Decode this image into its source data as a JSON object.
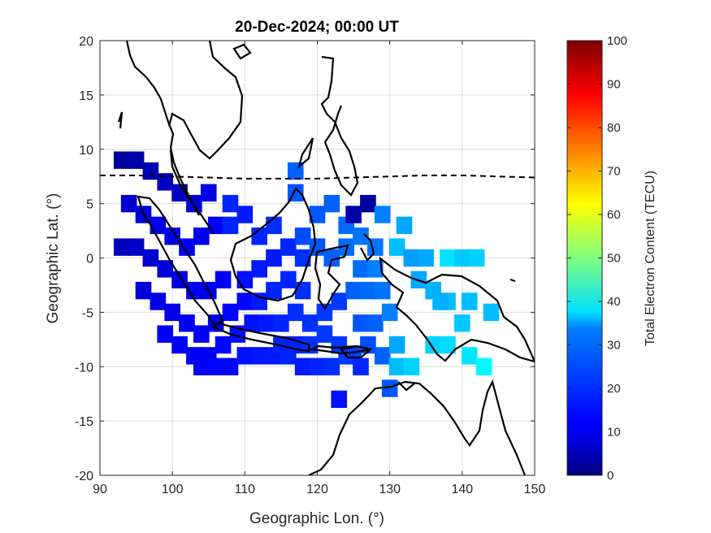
{
  "chart_data": {
    "type": "heatmap",
    "title": "20-Dec-2024; 00:00 UT",
    "xlabel": "Geographic Lon. (°)",
    "ylabel": "Geographic Lat. (°)",
    "colorbar_label": "Total Electron Content (TECU)",
    "colormap": "jet",
    "xlim": [
      90,
      150
    ],
    "ylim": [
      -20,
      20
    ],
    "clim": [
      0,
      100
    ],
    "xticks": [
      90,
      100,
      110,
      120,
      130,
      140,
      150
    ],
    "yticks": [
      -20,
      -15,
      -10,
      -5,
      0,
      5,
      10,
      15,
      20
    ],
    "cbticks": [
      0,
      10,
      20,
      30,
      40,
      50,
      60,
      70,
      80,
      90,
      100
    ],
    "grid": true,
    "magnetic_equator": [
      [
        90,
        7.6
      ],
      [
        95,
        7.6
      ],
      [
        100,
        7.5
      ],
      [
        105,
        7.4
      ],
      [
        110,
        7.3
      ],
      [
        115,
        7.3
      ],
      [
        120,
        7.3
      ],
      [
        125,
        7.4
      ],
      [
        130,
        7.5
      ],
      [
        135,
        7.6
      ],
      [
        140,
        7.6
      ],
      [
        145,
        7.5
      ],
      [
        150,
        7.4
      ]
    ],
    "cells": [
      [
        93,
        9,
        3
      ],
      [
        95,
        9,
        4
      ],
      [
        97,
        8,
        5
      ],
      [
        99,
        7,
        6
      ],
      [
        101,
        6,
        7
      ],
      [
        103,
        5,
        9
      ],
      [
        105,
        6,
        10
      ],
      [
        94,
        5,
        8
      ],
      [
        96,
        4,
        9
      ],
      [
        98,
        3,
        10
      ],
      [
        100,
        2,
        10
      ],
      [
        102,
        1,
        11
      ],
      [
        104,
        2,
        11
      ],
      [
        106,
        3,
        12
      ],
      [
        108,
        5,
        16
      ],
      [
        93,
        1,
        6
      ],
      [
        95,
        1,
        7
      ],
      [
        97,
        0,
        8
      ],
      [
        99,
        -1,
        9
      ],
      [
        101,
        -2,
        10
      ],
      [
        103,
        -3,
        11
      ],
      [
        105,
        -3,
        11
      ],
      [
        107,
        -2,
        12
      ],
      [
        96,
        -3,
        9
      ],
      [
        98,
        -4,
        10
      ],
      [
        100,
        -5,
        10
      ],
      [
        102,
        -6,
        11
      ],
      [
        104,
        -7,
        12
      ],
      [
        106,
        -6,
        12
      ],
      [
        108,
        -5,
        13
      ],
      [
        110,
        -4,
        13
      ],
      [
        99,
        -7,
        11
      ],
      [
        101,
        -8,
        12
      ],
      [
        103,
        -9,
        12
      ],
      [
        105,
        -9,
        12
      ],
      [
        107,
        -8,
        13
      ],
      [
        109,
        -7,
        14
      ],
      [
        111,
        -6,
        14
      ],
      [
        104,
        -10,
        12
      ],
      [
        106,
        -10,
        13
      ],
      [
        108,
        -10,
        13
      ],
      [
        110,
        -9,
        14
      ],
      [
        112,
        -9,
        15
      ],
      [
        114,
        -9,
        15
      ],
      [
        116,
        -9,
        16
      ],
      [
        110,
        -2,
        14
      ],
      [
        112,
        -1,
        15
      ],
      [
        114,
        0,
        15
      ],
      [
        116,
        1,
        16
      ],
      [
        118,
        0,
        17
      ],
      [
        112,
        -4,
        15
      ],
      [
        114,
        -3,
        16
      ],
      [
        116,
        -2,
        16
      ],
      [
        118,
        -3,
        17
      ],
      [
        113,
        -6,
        15
      ],
      [
        115,
        -6,
        16
      ],
      [
        117,
        -5,
        17
      ],
      [
        119,
        -6,
        17
      ],
      [
        121,
        -5,
        18
      ],
      [
        123,
        -4,
        18
      ],
      [
        115,
        -8,
        16
      ],
      [
        117,
        -8,
        16
      ],
      [
        119,
        -8,
        17
      ],
      [
        121,
        -7,
        18
      ],
      [
        123,
        -8,
        18
      ],
      [
        125,
        -9,
        19
      ],
      [
        118,
        -10,
        15
      ],
      [
        120,
        -10,
        16
      ],
      [
        122,
        -10,
        17
      ],
      [
        124,
        -9,
        18
      ],
      [
        126,
        -10,
        16
      ],
      [
        117,
        8,
        22
      ],
      [
        117,
        6,
        21
      ],
      [
        120,
        4,
        21
      ],
      [
        122,
        5,
        22
      ],
      [
        124,
        3,
        23
      ],
      [
        118,
        2,
        20
      ],
      [
        120,
        1,
        21
      ],
      [
        122,
        0,
        22
      ],
      [
        124,
        1,
        23
      ],
      [
        126,
        2,
        24
      ],
      [
        128,
        1,
        24
      ],
      [
        126,
        -1,
        23
      ],
      [
        128,
        -1,
        25
      ],
      [
        125,
        -3,
        22
      ],
      [
        127,
        -3,
        23
      ],
      [
        129,
        -3,
        24
      ],
      [
        126,
        -6,
        21
      ],
      [
        128,
        -6,
        22
      ],
      [
        130,
        -5,
        25
      ],
      [
        127,
        -8,
        20
      ],
      [
        129,
        -9,
        22
      ],
      [
        125,
        4,
        4
      ],
      [
        127,
        5,
        3
      ],
      [
        129,
        4,
        25
      ],
      [
        132,
        3,
        29
      ],
      [
        131,
        1,
        31
      ],
      [
        133,
        0,
        28
      ],
      [
        134,
        -2,
        29
      ],
      [
        136,
        -3,
        30
      ],
      [
        138,
        -4,
        31
      ],
      [
        135,
        0,
        29
      ],
      [
        138,
        0,
        35
      ],
      [
        140,
        0,
        32
      ],
      [
        142,
        0,
        33
      ],
      [
        137,
        -4,
        30
      ],
      [
        141,
        -4,
        31
      ],
      [
        144,
        -5,
        31
      ],
      [
        140,
        -6,
        32
      ],
      [
        136,
        -8,
        33
      ],
      [
        138,
        -8,
        34
      ],
      [
        141,
        -9,
        35
      ],
      [
        143,
        -10,
        37
      ],
      [
        131,
        -10,
        31
      ],
      [
        133,
        -10,
        33
      ],
      [
        123,
        -13,
        14
      ],
      [
        130,
        -12,
        21
      ],
      [
        131,
        -8,
        29
      ],
      [
        108,
        3,
        16
      ],
      [
        110,
        4,
        15
      ],
      [
        112,
        2,
        16
      ],
      [
        114,
        3,
        17
      ]
    ]
  }
}
